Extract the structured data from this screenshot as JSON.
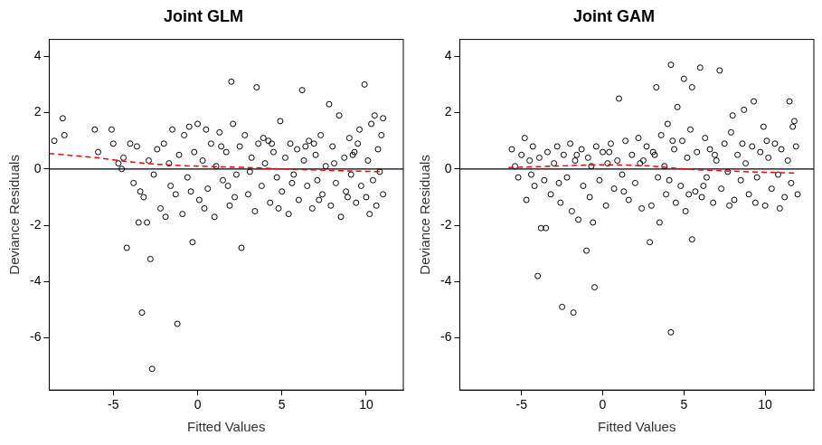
{
  "chart_data": [
    {
      "type": "scatter",
      "title": "Joint GLM",
      "x_label": "Fitted Values",
      "y_label": "Deviance Residuals",
      "xlim": [
        -8.8,
        12.2
      ],
      "xticks": [
        -5,
        0,
        5,
        10
      ],
      "ylim": [
        -7.85,
        4.6
      ],
      "yticks": [
        -6,
        -4,
        -2,
        0,
        2,
        4
      ],
      "grid": false,
      "series": [
        {
          "type": "scatter",
          "marker": "circle",
          "color": "#000000",
          "x": [
            -8.5,
            -8.0,
            -7.9,
            -6.1,
            -5.9,
            -5.1,
            -5.0,
            -4.7,
            -4.5,
            -4.4,
            -4.2,
            -4.0,
            -3.8,
            -3.6,
            -3.5,
            -3.4,
            -3.3,
            -3.2,
            -3.0,
            -2.9,
            -2.8,
            -2.7,
            -2.6,
            -2.4,
            -2.2,
            -2.0,
            -1.9,
            -1.7,
            -1.6,
            -1.5,
            -1.3,
            -1.2,
            -1.1,
            -0.9,
            -0.8,
            -0.6,
            -0.5,
            -0.3,
            -0.2,
            0,
            0.1,
            0.3,
            0.5,
            0.6,
            0.8,
            1.0,
            1.1,
            1.3,
            1.5,
            1.7,
            1.9,
            2.0,
            2.1,
            2.3,
            2.5,
            2.6,
            2.8,
            3.0,
            3.2,
            3.4,
            3.5,
            3.6,
            3.8,
            4.0,
            4.2,
            4.3,
            4.5,
            4.7,
            4.9,
            5.0,
            5.2,
            5.4,
            5.5,
            5.7,
            5.9,
            6.0,
            6.2,
            6.3,
            6.5,
            6.6,
            6.8,
            7.0,
            7.1,
            7.3,
            7.4,
            7.6,
            7.8,
            7.9,
            8.0,
            8.2,
            8.4,
            8.5,
            8.7,
            8.8,
            9.0,
            9.1,
            9.3,
            9.4,
            9.6,
            9.7,
            9.9,
            10.0,
            10.1,
            10.3,
            10.4,
            10.5,
            10.6,
            10.7,
            10.8,
            10.9,
            11.0,
            11.0,
            10.2,
            9.5,
            8.9,
            8.1,
            7.2,
            6.4,
            5.6,
            4.8,
            3.9,
            3.1,
            2.2,
            1.4,
            0.4,
            -0.4,
            1.8,
            4.4,
            6.9,
            9.2
          ],
          "values": [
            1.0,
            1.8,
            1.2,
            1.4,
            0.6,
            1.4,
            0.9,
            0.2,
            0.0,
            0.4,
            -2.8,
            0.9,
            -0.5,
            0.8,
            -1.9,
            -0.8,
            -5.1,
            -1.0,
            -1.9,
            0.3,
            -3.2,
            -7.1,
            -0.2,
            0.7,
            -1.4,
            0.9,
            -1.7,
            0.2,
            -0.6,
            1.4,
            -0.9,
            -5.5,
            0.5,
            -1.6,
            1.2,
            -0.3,
            1.5,
            -2.6,
            0.6,
            1.6,
            -1.1,
            0.3,
            1.4,
            -0.7,
            0.9,
            -1.7,
            0.1,
            1.3,
            -0.4,
            0.6,
            -1.3,
            3.1,
            1.6,
            -0.2,
            0.8,
            -2.8,
            1.2,
            -0.9,
            0.4,
            -1.5,
            2.9,
            0.9,
            -0.6,
            0.2,
            1.0,
            -1.2,
            0.6,
            -0.3,
            1.7,
            -0.8,
            0.4,
            -1.6,
            0.9,
            -0.2,
            0.7,
            -1.1,
            2.8,
            0.3,
            -0.6,
            1.0,
            -1.4,
            0.5,
            -0.4,
            1.2,
            -0.9,
            0.1,
            2.3,
            -1.3,
            0.8,
            -0.5,
            1.9,
            -1.7,
            0.4,
            -0.8,
            1.1,
            -0.2,
            0.6,
            -1.2,
            1.4,
            -0.6,
            3.0,
            -1.0,
            0.3,
            1.6,
            -0.4,
            1.9,
            -1.3,
            0.7,
            -0.1,
            1.2,
            -0.9,
            1.8,
            -1.6,
            0.9,
            -1.0,
            0.2,
            -1.1,
            0.8,
            -0.5,
            -1.4,
            1.1,
            -0.1,
            -1.0,
            0.8,
            -1.4,
            -0.8,
            -0.6,
            0.9,
            0.9,
            0.5
          ]
        },
        {
          "type": "line",
          "color": "#ff0000",
          "line_style": "dashed",
          "x": [
            -8.8,
            -6,
            -4,
            -2,
            0,
            3,
            6,
            9,
            11
          ],
          "values": [
            0.55,
            0.4,
            0.25,
            0.15,
            0.1,
            0.05,
            -0.02,
            -0.07,
            -0.1
          ]
        },
        {
          "type": "line",
          "color": "#000000",
          "line_style": "solid",
          "x": [
            -8.8,
            12.2
          ],
          "values": [
            0,
            0
          ]
        }
      ]
    },
    {
      "type": "scatter",
      "title": "Joint GAM",
      "x_label": "Fitted Values",
      "y_label": "Deviance Residuals",
      "xlim": [
        -8.8,
        13
      ],
      "xticks": [
        -5,
        0,
        5,
        10
      ],
      "ylim": [
        -7.85,
        4.6
      ],
      "yticks": [
        -6,
        -4,
        -2,
        0,
        2,
        4
      ],
      "grid": false,
      "series": [
        {
          "type": "scatter",
          "marker": "circle",
          "color": "#000000",
          "x": [
            -5.6,
            -5.4,
            -5.2,
            -5.0,
            -4.8,
            -4.7,
            -4.5,
            -4.3,
            -4.2,
            -4.0,
            -3.9,
            -3.8,
            -3.6,
            -3.5,
            -3.4,
            -3.2,
            -3.0,
            -2.8,
            -2.6,
            -2.5,
            -2.4,
            -2.2,
            -2.0,
            -1.9,
            -1.8,
            -1.7,
            -1.5,
            -1.3,
            -1.2,
            -1.0,
            -0.9,
            -0.8,
            -0.6,
            -0.5,
            -0.4,
            -0.2,
            0,
            0.2,
            0.3,
            0.5,
            0.7,
            0.9,
            1.0,
            1.2,
            1.4,
            1.6,
            1.8,
            2.0,
            2.2,
            2.4,
            2.5,
            2.7,
            2.9,
            3.0,
            3.1,
            3.3,
            3.4,
            3.5,
            3.6,
            3.8,
            3.9,
            4.0,
            4.1,
            4.2,
            4.2,
            4.4,
            4.5,
            4.6,
            4.8,
            4.9,
            5.0,
            5.1,
            5.2,
            5.4,
            5.5,
            5.5,
            5.7,
            5.8,
            6.0,
            6.1,
            6.3,
            6.4,
            6.6,
            6.8,
            7.0,
            7.2,
            7.3,
            7.5,
            7.7,
            7.9,
            8.0,
            8.1,
            8.3,
            8.5,
            8.7,
            8.8,
            9.0,
            9.2,
            9.3,
            9.5,
            9.7,
            9.9,
            10.0,
            10.2,
            10.4,
            10.6,
            10.8,
            11.0,
            11.2,
            11.4,
            11.5,
            11.6,
            11.8,
            11.9,
            12.0,
            11.7,
            10.9,
            10.1,
            9.4,
            8.6,
            7.8,
            6.9,
            6.2,
            5.3,
            4.3,
            3.2,
            2.3,
            1.3,
            0.4,
            -0.7,
            -1.6,
            -2.7,
            -4.4
          ],
          "values": [
            0.7,
            0.1,
            -0.3,
            0.5,
            1.1,
            -1.1,
            0.3,
            0.8,
            -0.6,
            -3.8,
            0.4,
            -2.1,
            -0.4,
            -2.1,
            0.6,
            -0.9,
            0.2,
            0.8,
            -1.2,
            -4.9,
            0.5,
            -0.3,
            0.9,
            -1.5,
            -5.1,
            0.3,
            -1.8,
            0.7,
            -0.6,
            -2.9,
            0.4,
            -1.0,
            -1.9,
            -4.2,
            0.8,
            -0.4,
            0.6,
            -1.3,
            0.2,
            0.9,
            -0.7,
            0.3,
            2.5,
            -0.2,
            1.0,
            -1.1,
            0.5,
            -0.5,
            1.1,
            -1.4,
            0.3,
            0.8,
            -2.6,
            -1.3,
            0.6,
            2.9,
            -0.3,
            -1.9,
            1.2,
            0.1,
            -0.9,
            1.6,
            -0.4,
            3.7,
            -5.8,
            0.7,
            -1.2,
            2.2,
            -0.6,
            1.0,
            3.2,
            -1.5,
            0.4,
            1.4,
            -2.5,
            2.9,
            -0.8,
            0.6,
            3.6,
            -1.0,
            1.1,
            -0.3,
            0.7,
            -1.2,
            0.3,
            3.5,
            -0.7,
            0.9,
            -0.1,
            1.3,
            1.9,
            -1.1,
            0.5,
            -0.4,
            2.1,
            0.2,
            -0.9,
            0.8,
            2.4,
            -0.3,
            0.6,
            1.5,
            -1.3,
            0.4,
            -0.7,
            0.9,
            -0.2,
            0.7,
            -1.0,
            0.3,
            2.4,
            -0.5,
            1.7,
            0.8,
            -0.9,
            1.5,
            -1.4,
            1.0,
            -1.2,
            0.9,
            -1.3,
            0.5,
            -0.6,
            -0.9,
            1.0,
            0.5,
            0.2,
            -0.8,
            0.6,
            0.1,
            0.5,
            -0.5,
            -0.2
          ]
        },
        {
          "type": "line",
          "color": "#ff0000",
          "line_style": "dashed",
          "x": [
            -5.8,
            -3,
            0,
            3,
            5,
            8,
            12
          ],
          "values": [
            0.05,
            0.1,
            0.15,
            0.1,
            0.0,
            -0.08,
            -0.15
          ]
        },
        {
          "type": "line",
          "color": "#000000",
          "line_style": "solid",
          "x": [
            -8.8,
            13
          ],
          "values": [
            0,
            0
          ]
        }
      ]
    }
  ]
}
